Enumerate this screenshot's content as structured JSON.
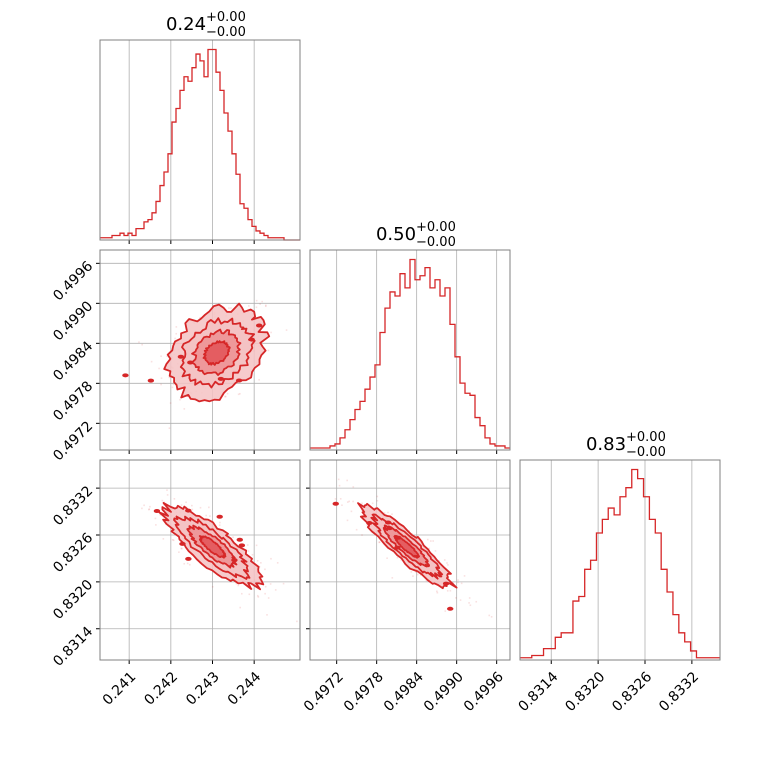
{
  "figure": {
    "type": "corner-plot"
  },
  "colors": {
    "accent": "#d62728",
    "fill_light": "#f4c2c3",
    "grid": "#b0b0b0",
    "frame": "#808080"
  },
  "chart_data": [
    {
      "type": "histogram",
      "id": "hist-p0",
      "title": {
        "main": "0.24",
        "upper": "+0.00",
        "lower": "−0.00"
      },
      "xlim": [
        0.2403,
        0.2451
      ],
      "bins_start": 0.2403,
      "bins_end": 0.2451,
      "counts": [
        1,
        1,
        1,
        2,
        2,
        3,
        2,
        3,
        2,
        5,
        5,
        8,
        9,
        12,
        17,
        24,
        30,
        38,
        52,
        58,
        66,
        72,
        70,
        76,
        82,
        79,
        72,
        84,
        84,
        74,
        66,
        56,
        48,
        38,
        29,
        16,
        14,
        9,
        6,
        4,
        3,
        2,
        1,
        1,
        1,
        1,
        0,
        0,
        0,
        0
      ],
      "xticks": [
        0.241,
        0.242,
        0.243,
        0.244
      ],
      "yticks": []
    },
    {
      "type": "histogram",
      "id": "hist-p1",
      "title": {
        "main": "0.50",
        "upper": "+0.00",
        "lower": "−0.00"
      },
      "xlim": [
        0.4968,
        0.4998
      ],
      "bins_start": 0.4968,
      "bins_end": 0.4998,
      "counts": [
        1,
        1,
        1,
        1,
        2,
        3,
        6,
        10,
        15,
        20,
        24,
        30,
        36,
        42,
        58,
        70,
        78,
        76,
        87,
        80,
        94,
        84,
        86,
        90,
        80,
        84,
        76,
        80,
        62,
        46,
        33,
        28,
        27,
        16,
        12,
        6,
        3,
        2,
        2,
        1
      ],
      "xticks": [
        0.4972,
        0.4978,
        0.4984,
        0.499,
        0.4996
      ],
      "yticks": []
    },
    {
      "type": "histogram",
      "id": "hist-p2",
      "title": {
        "main": "0.83",
        "upper": "+0.00",
        "lower": "−0.00"
      },
      "xlim": [
        0.831,
        0.83356
      ],
      "bins_start": 0.831,
      "bins_end": 0.83356,
      "counts": [
        1,
        1,
        2,
        2,
        5,
        5,
        10,
        12,
        12,
        26,
        28,
        40,
        44,
        56,
        62,
        67,
        64,
        72,
        76,
        84,
        80,
        72,
        62,
        56,
        40,
        30,
        20,
        12,
        8,
        4,
        1,
        1,
        1,
        1
      ],
      "xticks": [
        0.8314,
        0.832,
        0.8326,
        0.8332
      ],
      "yticks": []
    },
    {
      "type": "scatter-contour",
      "id": "pair-p0-p1",
      "x_param": 0,
      "y_param": 1,
      "xlim": [
        0.2403,
        0.2451
      ],
      "ylim": [
        0.4968,
        0.4998
      ],
      "center": [
        0.2431,
        0.49826
      ],
      "sd": [
        0.00058,
        0.00034
      ],
      "corr": 0.28,
      "xticks": [
        0.241,
        0.242,
        0.243,
        0.244
      ],
      "yticks": [
        0.4972,
        0.4978,
        0.4984,
        0.499,
        0.4996
      ]
    },
    {
      "type": "scatter-contour",
      "id": "pair-p0-p2",
      "x_param": 0,
      "y_param": 2,
      "xlim": [
        0.2403,
        0.2451
      ],
      "ylim": [
        0.831,
        0.83356
      ],
      "center": [
        0.243,
        0.83245
      ],
      "sd": [
        0.00058,
        0.00026
      ],
      "corr": -0.82,
      "xticks": [
        0.241,
        0.242,
        0.243,
        0.244
      ],
      "yticks": [
        0.8314,
        0.832,
        0.8326,
        0.8332
      ]
    },
    {
      "type": "scatter-contour",
      "id": "pair-p1-p2",
      "x_param": 1,
      "y_param": 2,
      "xlim": [
        0.4968,
        0.4998
      ],
      "ylim": [
        0.831,
        0.83356
      ],
      "center": [
        0.49825,
        0.83245
      ],
      "sd": [
        0.00034,
        0.00026
      ],
      "corr": -0.9,
      "xticks": [
        0.4972,
        0.4978,
        0.4984,
        0.499,
        0.4996
      ],
      "yticks": [
        0.8314,
        0.832,
        0.8326,
        0.8332
      ]
    }
  ],
  "tick_labels": {
    "p0": [
      "0.241",
      "0.242",
      "0.243",
      "0.244"
    ],
    "p1": [
      "0.4972",
      "0.4978",
      "0.4984",
      "0.4990",
      "0.4996"
    ],
    "p2": [
      "0.8314",
      "0.8320",
      "0.8326",
      "0.8332"
    ]
  }
}
